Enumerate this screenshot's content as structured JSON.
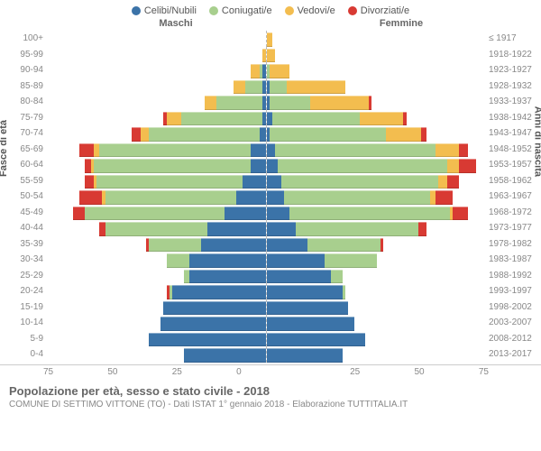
{
  "legend": [
    {
      "label": "Celibi/Nubili",
      "color": "#3b73a8"
    },
    {
      "label": "Coniugati/e",
      "color": "#a8cf8e"
    },
    {
      "label": "Vedovi/e",
      "color": "#f3bd4f"
    },
    {
      "label": "Divorziati/e",
      "color": "#d83a33"
    }
  ],
  "gender": {
    "left": "Maschi",
    "right": "Femmine"
  },
  "y_title_left": "Fasce di età",
  "y_title_right": "Anni di nascita",
  "x_max": 75,
  "x_ticks_left": [
    "75",
    "50",
    "25",
    "0"
  ],
  "x_ticks_right": [
    "",
    "25",
    "50",
    "75"
  ],
  "colors": {
    "single": "#3b73a8",
    "married": "#a8cf8e",
    "widowed": "#f3bd4f",
    "divorced": "#d83a33"
  },
  "rows": [
    {
      "age": "100+",
      "year": "≤ 1917",
      "m": [
        0,
        0,
        0,
        0
      ],
      "f": [
        0,
        0,
        2,
        0
      ]
    },
    {
      "age": "95-99",
      "year": "1918-1922",
      "m": [
        0,
        0,
        1,
        0
      ],
      "f": [
        0,
        0,
        3,
        0
      ]
    },
    {
      "age": "90-94",
      "year": "1923-1927",
      "m": [
        1,
        1,
        3,
        0
      ],
      "f": [
        0,
        1,
        7,
        0
      ]
    },
    {
      "age": "85-89",
      "year": "1928-1932",
      "m": [
        1,
        6,
        4,
        0
      ],
      "f": [
        1,
        6,
        20,
        0
      ]
    },
    {
      "age": "80-84",
      "year": "1933-1937",
      "m": [
        1,
        16,
        4,
        0
      ],
      "f": [
        1,
        14,
        20,
        1
      ]
    },
    {
      "age": "75-79",
      "year": "1938-1942",
      "m": [
        1,
        28,
        5,
        1
      ],
      "f": [
        2,
        30,
        15,
        1
      ]
    },
    {
      "age": "70-74",
      "year": "1943-1947",
      "m": [
        2,
        38,
        3,
        3
      ],
      "f": [
        1,
        40,
        12,
        2
      ]
    },
    {
      "age": "65-69",
      "year": "1948-1952",
      "m": [
        5,
        52,
        2,
        5
      ],
      "f": [
        3,
        55,
        8,
        3
      ]
    },
    {
      "age": "60-64",
      "year": "1953-1957",
      "m": [
        5,
        54,
        1,
        2
      ],
      "f": [
        4,
        58,
        4,
        6
      ]
    },
    {
      "age": "55-59",
      "year": "1958-1962",
      "m": [
        8,
        50,
        1,
        3
      ],
      "f": [
        5,
        54,
        3,
        4
      ]
    },
    {
      "age": "50-54",
      "year": "1963-1967",
      "m": [
        10,
        45,
        1,
        8
      ],
      "f": [
        6,
        50,
        2,
        6
      ]
    },
    {
      "age": "45-49",
      "year": "1968-1972",
      "m": [
        14,
        48,
        0,
        4
      ],
      "f": [
        8,
        55,
        1,
        5
      ]
    },
    {
      "age": "40-44",
      "year": "1973-1977",
      "m": [
        20,
        35,
        0,
        2
      ],
      "f": [
        10,
        42,
        0,
        3
      ]
    },
    {
      "age": "35-39",
      "year": "1978-1982",
      "m": [
        22,
        18,
        0,
        1
      ],
      "f": [
        14,
        25,
        0,
        1
      ]
    },
    {
      "age": "30-34",
      "year": "1983-1987",
      "m": [
        26,
        8,
        0,
        0
      ],
      "f": [
        20,
        18,
        0,
        0
      ]
    },
    {
      "age": "25-29",
      "year": "1988-1992",
      "m": [
        26,
        2,
        0,
        0
      ],
      "f": [
        22,
        4,
        0,
        0
      ]
    },
    {
      "age": "20-24",
      "year": "1993-1997",
      "m": [
        32,
        1,
        0,
        1
      ],
      "f": [
        26,
        1,
        0,
        0
      ]
    },
    {
      "age": "15-19",
      "year": "1998-2002",
      "m": [
        35,
        0,
        0,
        0
      ],
      "f": [
        28,
        0,
        0,
        0
      ]
    },
    {
      "age": "10-14",
      "year": "2003-2007",
      "m": [
        36,
        0,
        0,
        0
      ],
      "f": [
        30,
        0,
        0,
        0
      ]
    },
    {
      "age": "5-9",
      "year": "2008-2012",
      "m": [
        40,
        0,
        0,
        0
      ],
      "f": [
        34,
        0,
        0,
        0
      ]
    },
    {
      "age": "0-4",
      "year": "2013-2017",
      "m": [
        28,
        0,
        0,
        0
      ],
      "f": [
        26,
        0,
        0,
        0
      ]
    }
  ],
  "caption": {
    "title": "Popolazione per età, sesso e stato civile - 2018",
    "subtitle": "COMUNE DI SETTIMO VITTONE (TO) - Dati ISTAT 1° gennaio 2018 - Elaborazione TUTTITALIA.IT"
  }
}
